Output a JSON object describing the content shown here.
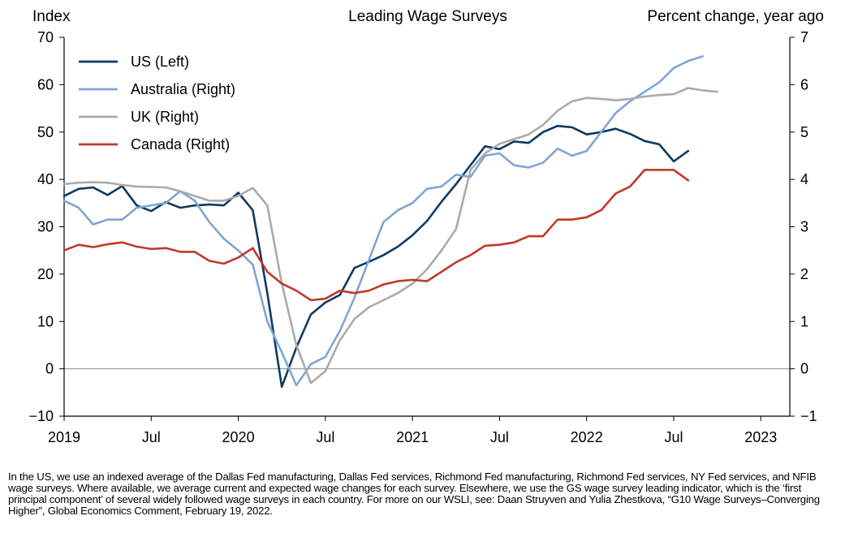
{
  "chart_data": {
    "type": "line",
    "title": "Leading Wage Surveys",
    "left_axis_label": "Index",
    "right_axis_label": "Percent change, year ago",
    "left_ylim": [
      -10,
      70
    ],
    "right_ylim": [
      -1,
      7
    ],
    "left_ticks": [
      -10,
      0,
      10,
      20,
      30,
      40,
      50,
      60,
      70
    ],
    "right_ticks": [
      -1,
      0,
      1,
      2,
      3,
      4,
      5,
      6,
      7
    ],
    "x_range": [
      "2019-01",
      "2023-03"
    ],
    "x_ticks": [
      {
        "label": "2019",
        "date": "2019-01"
      },
      {
        "label": "Jul",
        "date": "2019-07"
      },
      {
        "label": "2020",
        "date": "2020-01"
      },
      {
        "label": "Jul",
        "date": "2020-07"
      },
      {
        "label": "2021",
        "date": "2021-01"
      },
      {
        "label": "Jul",
        "date": "2021-07"
      },
      {
        "label": "2022",
        "date": "2022-01"
      },
      {
        "label": "Jul",
        "date": "2022-07"
      },
      {
        "label": "2023",
        "date": "2023-01"
      }
    ],
    "zero_line": true,
    "grid": false,
    "legend_position": "top-left",
    "series": [
      {
        "name": "US (Left)",
        "axis": "left",
        "color": "#0d3a63",
        "points": [
          [
            "2019-01",
            36.5
          ],
          [
            "2019-02",
            38.0
          ],
          [
            "2019-03",
            38.3
          ],
          [
            "2019-04",
            36.7
          ],
          [
            "2019-05",
            38.6
          ],
          [
            "2019-06",
            34.5
          ],
          [
            "2019-07",
            33.3
          ],
          [
            "2019-08",
            35.2
          ],
          [
            "2019-09",
            34.0
          ],
          [
            "2019-10",
            34.5
          ],
          [
            "2019-11",
            34.7
          ],
          [
            "2019-12",
            34.5
          ],
          [
            "2020-01",
            37.2
          ],
          [
            "2020-02",
            33.5
          ],
          [
            "2020-03",
            16.0
          ],
          [
            "2020-04",
            -3.8
          ],
          [
            "2020-05",
            4.5
          ],
          [
            "2020-06",
            11.5
          ],
          [
            "2020-07",
            14.0
          ],
          [
            "2020-08",
            15.6
          ],
          [
            "2020-09",
            21.3
          ],
          [
            "2020-10",
            22.6
          ],
          [
            "2020-11",
            24.0
          ],
          [
            "2020-12",
            25.8
          ],
          [
            "2021-01",
            28.2
          ],
          [
            "2021-02",
            31.2
          ],
          [
            "2021-03",
            35.3
          ],
          [
            "2021-04",
            39.0
          ],
          [
            "2021-05",
            43.0
          ],
          [
            "2021-06",
            47.0
          ],
          [
            "2021-07",
            46.4
          ],
          [
            "2021-08",
            48.0
          ],
          [
            "2021-09",
            47.7
          ],
          [
            "2021-10",
            50.0
          ],
          [
            "2021-11",
            51.3
          ],
          [
            "2021-12",
            51.0
          ],
          [
            "2022-01",
            49.5
          ],
          [
            "2022-02",
            50.0
          ],
          [
            "2022-03",
            50.7
          ],
          [
            "2022-04",
            49.6
          ],
          [
            "2022-05",
            48.1
          ],
          [
            "2022-06",
            47.4
          ],
          [
            "2022-07",
            43.8
          ],
          [
            "2022-08",
            46.0
          ]
        ]
      },
      {
        "name": "Australia (Right)",
        "axis": "right",
        "color": "#7ea6d6",
        "points": [
          [
            "2019-01",
            3.55
          ],
          [
            "2019-02",
            3.4
          ],
          [
            "2019-03",
            3.05
          ],
          [
            "2019-04",
            3.15
          ],
          [
            "2019-05",
            3.15
          ],
          [
            "2019-06",
            3.4
          ],
          [
            "2019-07",
            3.45
          ],
          [
            "2019-08",
            3.5
          ],
          [
            "2019-09",
            3.75
          ],
          [
            "2019-10",
            3.55
          ],
          [
            "2019-11",
            3.1
          ],
          [
            "2019-12",
            2.75
          ],
          [
            "2020-01",
            2.5
          ],
          [
            "2020-02",
            2.2
          ],
          [
            "2020-03",
            1.0
          ],
          [
            "2020-04",
            0.35
          ],
          [
            "2020-05",
            -0.35
          ],
          [
            "2020-06",
            0.1
          ],
          [
            "2020-07",
            0.25
          ],
          [
            "2020-08",
            0.8
          ],
          [
            "2020-09",
            1.5
          ],
          [
            "2020-10",
            2.3
          ],
          [
            "2020-11",
            3.1
          ],
          [
            "2020-12",
            3.35
          ],
          [
            "2021-01",
            3.5
          ],
          [
            "2021-02",
            3.8
          ],
          [
            "2021-03",
            3.85
          ],
          [
            "2021-04",
            4.1
          ],
          [
            "2021-05",
            4.05
          ],
          [
            "2021-06",
            4.5
          ],
          [
            "2021-07",
            4.55
          ],
          [
            "2021-08",
            4.3
          ],
          [
            "2021-09",
            4.25
          ],
          [
            "2021-10",
            4.35
          ],
          [
            "2021-11",
            4.65
          ],
          [
            "2021-12",
            4.5
          ],
          [
            "2022-01",
            4.6
          ],
          [
            "2022-02",
            5.0
          ],
          [
            "2022-03",
            5.4
          ],
          [
            "2022-04",
            5.65
          ],
          [
            "2022-05",
            5.85
          ],
          [
            "2022-06",
            6.05
          ],
          [
            "2022-07",
            6.35
          ],
          [
            "2022-08",
            6.5
          ],
          [
            "2022-09",
            6.6
          ]
        ]
      },
      {
        "name": "UK (Right)",
        "axis": "right",
        "color": "#aaaaaa",
        "points": [
          [
            "2019-01",
            3.9
          ],
          [
            "2019-02",
            3.93
          ],
          [
            "2019-03",
            3.94
          ],
          [
            "2019-04",
            3.93
          ],
          [
            "2019-05",
            3.88
          ],
          [
            "2019-06",
            3.85
          ],
          [
            "2019-07",
            3.84
          ],
          [
            "2019-08",
            3.83
          ],
          [
            "2019-09",
            3.75
          ],
          [
            "2019-10",
            3.65
          ],
          [
            "2019-11",
            3.55
          ],
          [
            "2019-12",
            3.55
          ],
          [
            "2020-01",
            3.65
          ],
          [
            "2020-02",
            3.82
          ],
          [
            "2020-03",
            3.45
          ],
          [
            "2020-04",
            1.8
          ],
          [
            "2020-05",
            0.5
          ],
          [
            "2020-06",
            -0.3
          ],
          [
            "2020-07",
            -0.05
          ],
          [
            "2020-08",
            0.6
          ],
          [
            "2020-09",
            1.05
          ],
          [
            "2020-10",
            1.3
          ],
          [
            "2020-11",
            1.45
          ],
          [
            "2020-12",
            1.6
          ],
          [
            "2021-01",
            1.8
          ],
          [
            "2021-02",
            2.1
          ],
          [
            "2021-03",
            2.5
          ],
          [
            "2021-04",
            2.95
          ],
          [
            "2021-05",
            4.2
          ],
          [
            "2021-06",
            4.55
          ],
          [
            "2021-07",
            4.75
          ],
          [
            "2021-08",
            4.85
          ],
          [
            "2021-09",
            4.95
          ],
          [
            "2021-10",
            5.15
          ],
          [
            "2021-11",
            5.45
          ],
          [
            "2021-12",
            5.65
          ],
          [
            "2022-01",
            5.72
          ],
          [
            "2022-02",
            5.7
          ],
          [
            "2022-03",
            5.67
          ],
          [
            "2022-04",
            5.7
          ],
          [
            "2022-05",
            5.75
          ],
          [
            "2022-06",
            5.78
          ],
          [
            "2022-07",
            5.8
          ],
          [
            "2022-08",
            5.93
          ],
          [
            "2022-09",
            5.88
          ],
          [
            "2022-10",
            5.85
          ]
        ]
      },
      {
        "name": "Canada (Right)",
        "axis": "right",
        "color": "#c0392b",
        "points": [
          [
            "2019-01",
            2.5
          ],
          [
            "2019-02",
            2.62
          ],
          [
            "2019-03",
            2.57
          ],
          [
            "2019-04",
            2.63
          ],
          [
            "2019-05",
            2.67
          ],
          [
            "2019-06",
            2.58
          ],
          [
            "2019-07",
            2.53
          ],
          [
            "2019-08",
            2.55
          ],
          [
            "2019-09",
            2.47
          ],
          [
            "2019-10",
            2.47
          ],
          [
            "2019-11",
            2.28
          ],
          [
            "2019-12",
            2.22
          ],
          [
            "2020-01",
            2.35
          ],
          [
            "2020-02",
            2.55
          ],
          [
            "2020-03",
            2.05
          ],
          [
            "2020-04",
            1.8
          ],
          [
            "2020-05",
            1.65
          ],
          [
            "2020-06",
            1.45
          ],
          [
            "2020-07",
            1.48
          ],
          [
            "2020-08",
            1.65
          ],
          [
            "2020-09",
            1.6
          ],
          [
            "2020-10",
            1.65
          ],
          [
            "2020-11",
            1.78
          ],
          [
            "2020-12",
            1.85
          ],
          [
            "2021-01",
            1.88
          ],
          [
            "2021-02",
            1.85
          ],
          [
            "2021-03",
            2.05
          ],
          [
            "2021-04",
            2.25
          ],
          [
            "2021-05",
            2.4
          ],
          [
            "2021-06",
            2.6
          ],
          [
            "2021-07",
            2.62
          ],
          [
            "2021-08",
            2.67
          ],
          [
            "2021-09",
            2.8
          ],
          [
            "2021-10",
            2.8
          ],
          [
            "2021-11",
            3.15
          ],
          [
            "2021-12",
            3.15
          ],
          [
            "2022-01",
            3.2
          ],
          [
            "2022-02",
            3.35
          ],
          [
            "2022-03",
            3.7
          ],
          [
            "2022-04",
            3.85
          ],
          [
            "2022-05",
            4.2
          ],
          [
            "2022-06",
            4.2
          ],
          [
            "2022-07",
            4.2
          ],
          [
            "2022-08",
            3.98
          ]
        ]
      }
    ]
  },
  "footnote": {
    "text": "In the US, we use an indexed average of the Dallas Fed manufacturing, Dallas Fed services, Richmond Fed manufacturing, Richmond Fed services, NY Fed services, and NFIB wage surveys. Where available, we average current and expected wage changes for each survey. Elsewhere, we use the GS wage survey leading indicator, which is the ‘first principal component’ of several widely followed wage surveys in each country. For more on our WSLI, see: Daan Struyven and Yulia Zhestkova, “G10 Wage Surveys–Converging Higher”, Global Economics Comment, February 19, 2022."
  }
}
